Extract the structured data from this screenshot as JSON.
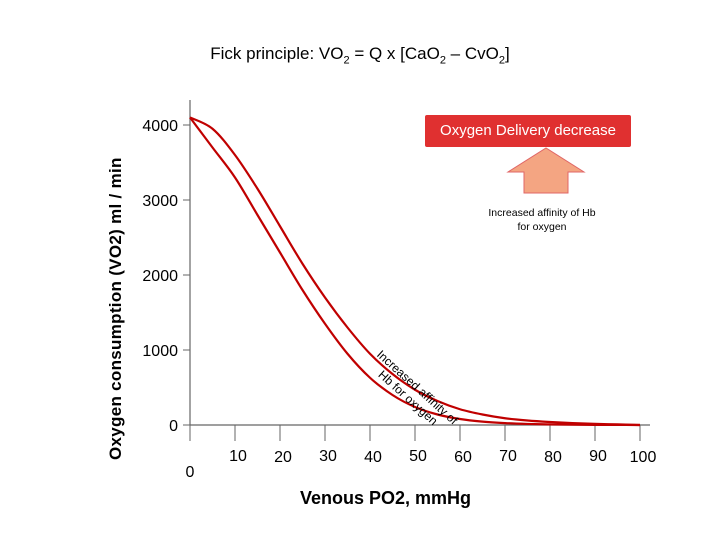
{
  "title_prefix": "Fick principle:  VO",
  "title_sub1": "2",
  "title_mid": " = Q x [CaO",
  "title_sub2": "2",
  "title_dash": " – CvO",
  "title_sub3": "2",
  "title_end": "]",
  "annotations": {
    "delivery_badge": "Oxygen Delivery decrease",
    "note_right": "Increased affinity of Hb for oxygen",
    "note_diagonal": "Increased affinity of Hb for oxygen"
  },
  "colors": {
    "curve": "#c00000",
    "badge": "#e03030",
    "arrow_fill": "#f4a582",
    "arrow_stroke": "#e06666",
    "axis": "#666666"
  },
  "chart_data": {
    "type": "line",
    "xlabel": "Venous PO2, mmHg",
    "ylabel": "Oxygen consumption (VO2) ml / min",
    "xlim": [
      0,
      100
    ],
    "ylim": [
      0,
      4000
    ],
    "x_ticks": [
      0,
      10,
      20,
      30,
      40,
      50,
      60,
      70,
      80,
      90,
      100
    ],
    "y_ticks": [
      0,
      1000,
      2000,
      3000,
      4000
    ],
    "grid": false,
    "series": [
      {
        "x": [
          0,
          5,
          10,
          15,
          20,
          25,
          30,
          35,
          40,
          45,
          50,
          55,
          60,
          65,
          70,
          75,
          80,
          85,
          90,
          95,
          100
        ],
        "y": [
          4100,
          3950,
          3600,
          3150,
          2650,
          2150,
          1700,
          1300,
          950,
          680,
          470,
          320,
          210,
          140,
          90,
          60,
          40,
          25,
          15,
          8,
          0
        ]
      },
      {
        "x": [
          0,
          5,
          10,
          15,
          20,
          25,
          30,
          35,
          40,
          45,
          50,
          55,
          60,
          65,
          70,
          75,
          80,
          85,
          90,
          95,
          100
        ],
        "y": [
          4100,
          3700,
          3300,
          2800,
          2300,
          1800,
          1350,
          950,
          630,
          400,
          240,
          140,
          80,
          45,
          25,
          14,
          8,
          4,
          2,
          1,
          0
        ]
      }
    ]
  }
}
